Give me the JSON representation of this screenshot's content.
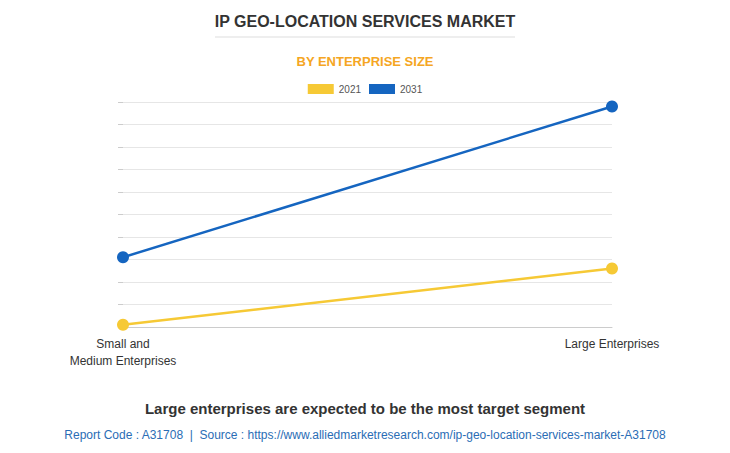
{
  "chart_data": {
    "type": "line",
    "title": "IP GEO-LOCATION SERVICES MARKET",
    "subtitle": "BY ENTERPRISE SIZE",
    "categories": [
      "Small and\nMedium Enterprises",
      "Large Enterprises"
    ],
    "series": [
      {
        "name": "2021",
        "color": "#f6c935",
        "values": [
          0.1,
          2.6
        ]
      },
      {
        "name": "2031",
        "color": "#1565c0",
        "values": [
          3.1,
          9.8
        ]
      }
    ],
    "ylim": [
      0,
      10
    ],
    "yticks": [
      0,
      1,
      2,
      3,
      4,
      5,
      6,
      7,
      8,
      9,
      10
    ],
    "grid": true,
    "tick_labels": "x",
    "legend": "top",
    "marker": "circle",
    "annotations": [
      "Large enterprises are expected to be the most target segment",
      "Report Code : A31708  |  Source : https://www.alliedmarketresearch.com/ip-geo-location-services-market-A31708"
    ]
  }
}
